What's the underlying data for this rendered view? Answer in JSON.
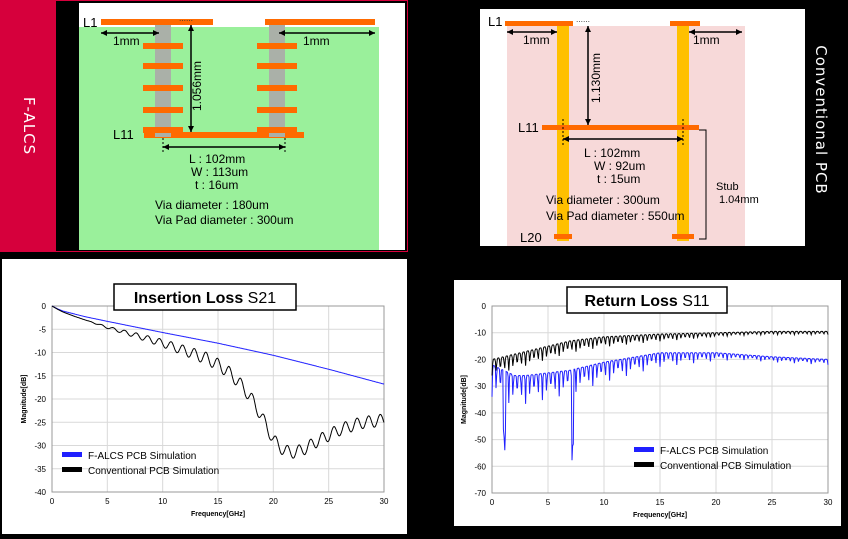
{
  "falcs_panel": {
    "side_label": "F-ALCS",
    "layer_top": "L1",
    "layer_bottom": "L11",
    "pitch_left": "1mm",
    "pitch_right": "1mm",
    "height": "1.056mm",
    "spec_l": "L : 102mm",
    "spec_w": "W : 113um",
    "spec_t": "t : 16um",
    "via_diameter": "Via diameter  : 180um",
    "via_pad_diameter": "Via Pad diameter : 300um",
    "colors": {
      "background": "#9af09b",
      "accent_bar": "#d6003c",
      "trace": "#ff6a00"
    }
  },
  "conventional_panel": {
    "side_label": "Conventional PCB",
    "layer_top": "L1",
    "layer_mid": "L11",
    "layer_bottom": "L20",
    "pitch_left": "1mm",
    "pitch_right": "1mm",
    "height": "1.130mm",
    "spec_l": "L : 102mm",
    "spec_w": "W : 92um",
    "spec_t": "t : 15um",
    "via_diameter": "Via diameter  : 300um",
    "via_pad_diameter": "Via Pad diameter : 550um",
    "stub_label": "Stub",
    "stub_value": "1.04mm",
    "colors": {
      "background": "#f7d9d9",
      "via": "#ffc000",
      "trace": "#ff6a00"
    }
  },
  "chart_data": [
    {
      "type": "line",
      "title_bold": "Insertion Loss",
      "title_rest": "S21",
      "xlabel": "Frequency[GHz]",
      "ylabel": "Magnitude[dB]",
      "xlim": [
        0,
        30
      ],
      "ylim": [
        -40,
        0
      ],
      "xticks": [
        "0",
        "5",
        "10",
        "15",
        "20",
        "25",
        "30"
      ],
      "yticks": [
        "0",
        "-5",
        "-10",
        "-15",
        "-20",
        "-25",
        "-30",
        "-35",
        "-40"
      ],
      "series": [
        {
          "name": "F-ALCS PCB Simulation",
          "color": "#2020ff",
          "x": [
            0,
            0.5,
            1,
            2,
            3,
            5,
            10,
            15,
            20,
            25,
            30
          ],
          "y": [
            0,
            -0.6,
            -1.1,
            -1.7,
            -2.3,
            -3.3,
            -5.7,
            -8.0,
            -10.6,
            -13.6,
            -16.8
          ]
        },
        {
          "name": "Conventional PCB Simulation",
          "color": "#000000",
          "x": [
            0,
            0.5,
            1,
            2,
            3,
            5,
            8,
            10,
            12,
            14,
            15,
            16,
            17,
            18,
            19,
            20,
            21,
            22,
            23,
            24,
            25,
            26,
            27,
            28,
            29,
            30
          ],
          "y": [
            0,
            -0.7,
            -1.3,
            -2.2,
            -3.0,
            -4.6,
            -6.6,
            -8.0,
            -9.6,
            -11.3,
            -12.6,
            -14.3,
            -16.7,
            -19.8,
            -24.0,
            -28.8,
            -31.2,
            -31.5,
            -30.5,
            -29.0,
            -27.8,
            -26.6,
            -25.8,
            -25.1,
            -24.8,
            -24.5
          ],
          "oscillation_note": ""
        }
      ],
      "legend": "bottom-left"
    },
    {
      "type": "line",
      "title_bold": "Return Loss",
      "title_rest": "S11",
      "xlabel": "Frequency[GHz]",
      "ylabel": "Magnitude[dB]",
      "xlim": [
        0,
        30
      ],
      "ylim": [
        -70,
        0
      ],
      "xticks": [
        "0",
        "5",
        "10",
        "15",
        "20",
        "25",
        "30"
      ],
      "yticks": [
        "0",
        "-10",
        "-20",
        "-30",
        "-40",
        "-50",
        "-60",
        "-70"
      ],
      "series": [
        {
          "name": "F-ALCS PCB Simulation",
          "color": "#2020ff",
          "x": [
            0,
            1,
            2,
            3,
            5,
            7,
            10,
            15,
            20,
            25,
            30
          ],
          "y": [
            -22,
            -24,
            -26,
            -26,
            -25,
            -24,
            -21,
            -17.5,
            -17.5,
            -19,
            -20
          ]
        },
        {
          "name": "Conventional PCB Simulation",
          "color": "#000000",
          "x": [
            0,
            1,
            2,
            3,
            5,
            7,
            10,
            15,
            20,
            25,
            30
          ],
          "y": [
            -20,
            -19,
            -18,
            -17,
            -15,
            -13,
            -11.5,
            -10.5,
            -10,
            -9.5,
            -9.5
          ]
        }
      ],
      "legend": "bottom-right"
    }
  ]
}
